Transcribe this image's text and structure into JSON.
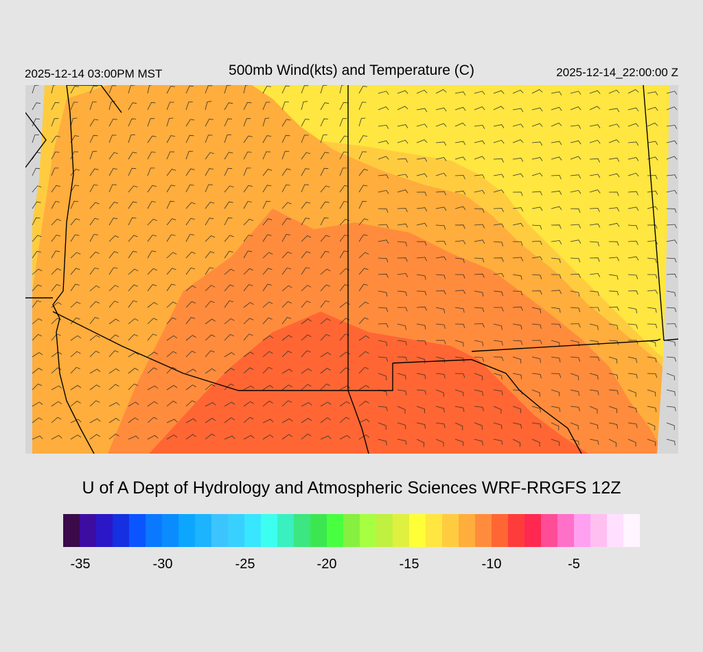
{
  "header": {
    "local_time": "2025-12-14 03:00PM MST",
    "title": "500mb Wind(kts) and Temperature (C)",
    "valid_time": "2025-12-14_22:00:00 Z"
  },
  "footer": {
    "credit": "U of A Dept of Hydrology and Atmospheric Sciences WRF-RRGFS 12Z"
  },
  "colorbar": {
    "colors": [
      "#3a0a4a",
      "#3d0da1",
      "#2a17c7",
      "#1430e0",
      "#0a55ff",
      "#0a78ff",
      "#0a8cff",
      "#0ca6ff",
      "#1cb4ff",
      "#3cc4ff",
      "#38d1ff",
      "#38e6ff",
      "#3cfff0",
      "#38f0c0",
      "#3ce680",
      "#3ce650",
      "#48ff40",
      "#86f040",
      "#a6ff40",
      "#c0f040",
      "#e0f040",
      "#ffff38",
      "#ffe640",
      "#ffcc40",
      "#ffad3c",
      "#ff8c3c",
      "#ff6633",
      "#ff3c3c",
      "#ff2850",
      "#ff4c96",
      "#ff70c8",
      "#ffa0f0",
      "#ffc0f0",
      "#ffe0ff",
      "#fff4ff"
    ],
    "ticks": [
      "-35",
      "-30",
      "-25",
      "-20",
      "-15",
      "-10",
      "-5"
    ]
  },
  "map": {
    "bands_colors": [
      "#ffe640",
      "#ffcc40",
      "#ffad3c",
      "#ff8c3c",
      "#ff6633"
    ]
  }
}
